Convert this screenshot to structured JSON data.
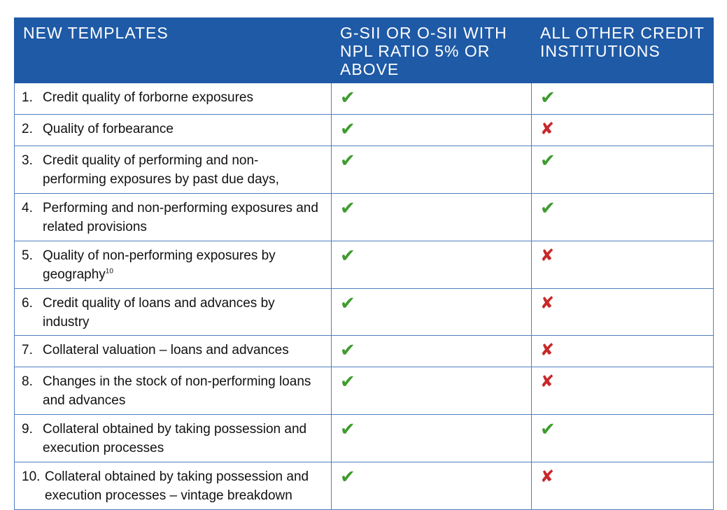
{
  "headers": {
    "col1": "NEW TEMPLATES",
    "col2": "G-SII OR O-SII WITH NPL RATIO 5% OR ABOVE",
    "col3": "ALL OTHER CREDIT INSTITUTIONS"
  },
  "symbols": {
    "check": "✔",
    "cross": "✘"
  },
  "colors": {
    "header_bg": "#1f5aa6",
    "check": "#3f9b2f",
    "cross": "#c8282a",
    "border": "#4f7fbf"
  },
  "rows": [
    {
      "num": "1.",
      "text": "Credit quality of forborne exposures",
      "gsii": "check",
      "other": "check"
    },
    {
      "num": "2.",
      "text": "Quality of forbearance",
      "gsii": "check",
      "other": "cross"
    },
    {
      "num": "3.",
      "text": "Credit quality of performing and non- performing exposures by past due days,",
      "gsii": "check",
      "other": "check"
    },
    {
      "num": "4.",
      "text": "Performing and non-performing exposures and related provisions",
      "gsii": "check",
      "other": "check"
    },
    {
      "num": "5.",
      "text": "Quality of non-performing exposures by geography",
      "footnote": "10",
      "gsii": "check",
      "other": "cross"
    },
    {
      "num": "6.",
      "text": "Credit quality of loans and advances by industry",
      "gsii": "check",
      "other": "cross"
    },
    {
      "num": "7.",
      "text": "Collateral valuation – loans and advances",
      "gsii": "check",
      "other": "cross"
    },
    {
      "num": "8.",
      "text": "Changes in the stock of non-performing loans and advances",
      "gsii": "check",
      "other": "cross"
    },
    {
      "num": "9.",
      "text": "Collateral obtained by taking possession and execution processes",
      "gsii": "check",
      "other": "check"
    },
    {
      "num": "10.",
      "text": "Collateral obtained by taking possession and execution processes – vintage breakdown",
      "gsii": "check",
      "other": "cross"
    }
  ]
}
